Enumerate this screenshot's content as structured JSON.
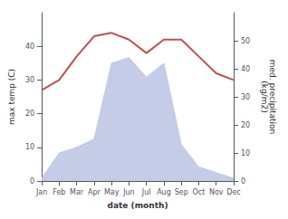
{
  "chart_data": {
    "type": "line",
    "xlabel": "date (month)",
    "ylabel": "max temp (C)",
    "y2label": "med. precipitation\n(kg/m2)",
    "categories": [
      "Jan",
      "Feb",
      "Mar",
      "Apr",
      "May",
      "Jun",
      "Jul",
      "Aug",
      "Sep",
      "Oct",
      "Nov",
      "Dec"
    ],
    "ylim": [
      0,
      50
    ],
    "yticks": [
      0,
      10,
      20,
      30,
      40
    ],
    "y2lim": [
      0,
      60
    ],
    "y2ticks": [
      0,
      10,
      20,
      30,
      40,
      50
    ],
    "grid": false,
    "series": [
      {
        "type": "area",
        "axis": "y2",
        "color": "#c5cce8",
        "values": [
          1,
          10,
          12,
          15,
          42,
          44,
          37,
          42,
          13,
          5,
          3,
          1
        ]
      },
      {
        "type": "line",
        "color": "#c0504d",
        "values": [
          27,
          30,
          37,
          43,
          44,
          42,
          38,
          42,
          42,
          37,
          32,
          30
        ]
      }
    ]
  }
}
